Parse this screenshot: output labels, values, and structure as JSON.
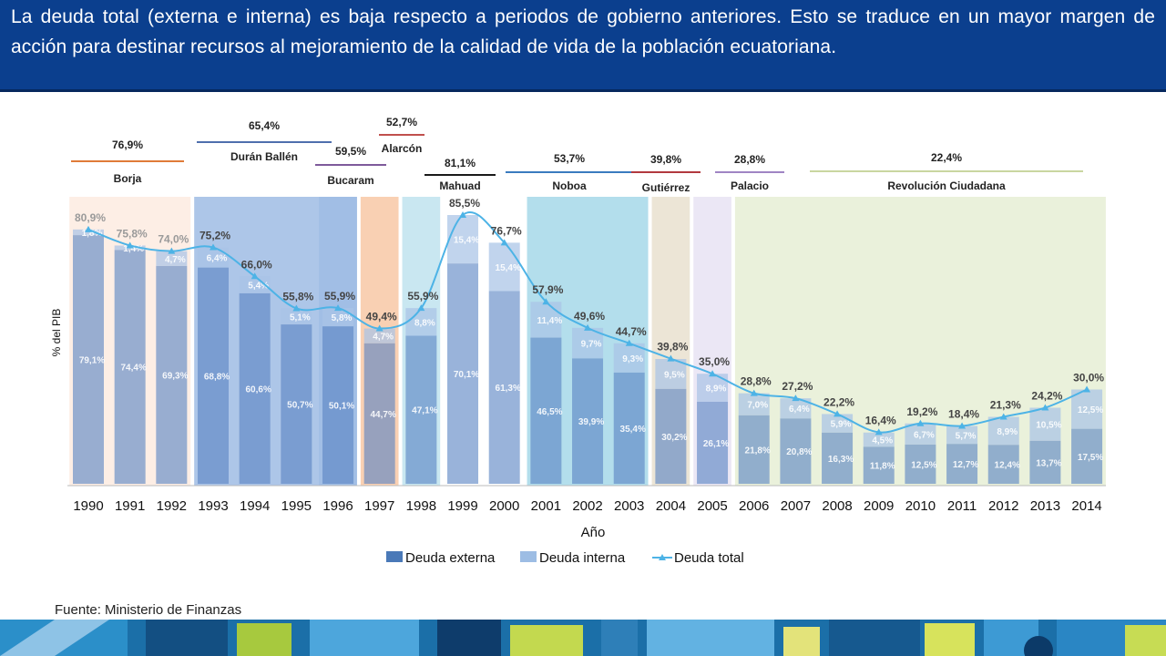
{
  "header": {
    "text": "La deuda total (externa e interna) es baja respecto a periodos de gobierno anteriores.   Esto se traduce en un mayor margen de acción para destinar recursos al mejoramiento de la calidad de vida de la población ecuatoriana."
  },
  "source": "Fuente: Ministerio de Finanzas",
  "footer": {
    "decoration": "money-pattern-band"
  },
  "chart_data": {
    "type": "bar",
    "stacked": true,
    "categories": [
      "1990",
      "1991",
      "1992",
      "1993",
      "1994",
      "1995",
      "1996",
      "1997",
      "1998",
      "1999",
      "2000",
      "2001",
      "2002",
      "2003",
      "2004",
      "2005",
      "2006",
      "2007",
      "2008",
      "2009",
      "2010",
      "2011",
      "2012",
      "2013",
      "2014"
    ],
    "series": [
      {
        "name": "Deuda externa",
        "values": [
          79.1,
          74.4,
          69.3,
          68.8,
          60.6,
          50.7,
          50.1,
          44.7,
          47.1,
          70.1,
          61.3,
          46.5,
          39.9,
          35.4,
          30.2,
          26.1,
          21.8,
          20.8,
          16.3,
          11.8,
          12.5,
          12.7,
          12.4,
          13.7,
          17.5
        ],
        "labels": [
          "79,1%",
          "74,4%",
          "69,3%",
          "68,8%",
          "60,6%",
          "50,7%",
          "50,1%",
          "44,7%",
          "47,1%",
          "70,1%",
          "61,3%",
          "46,5%",
          "39,9%",
          "35,4%",
          "30,2%",
          "26,1%",
          "21,8%",
          "20,8%",
          "16,3%",
          "11,8%",
          "12,5%",
          "12,7%",
          "12,4%",
          "13,7%",
          "17,5%"
        ]
      },
      {
        "name": "Deuda interna",
        "values": [
          1.8,
          1.4,
          4.7,
          6.4,
          5.4,
          5.1,
          5.8,
          4.7,
          8.8,
          15.4,
          15.4,
          11.4,
          9.7,
          9.3,
          9.5,
          8.9,
          7.0,
          6.4,
          5.9,
          4.5,
          6.7,
          5.7,
          8.9,
          10.5,
          12.5
        ],
        "labels": [
          "1,8%",
          "1,4%",
          "4,7%",
          "6,4%",
          "5,4%",
          "5,1%",
          "5,8%",
          "4,7%",
          "8,8%",
          "15,4%",
          "15,4%",
          "11,4%",
          "9,7%",
          "9,3%",
          "9,5%",
          "8,9%",
          "7,0%",
          "6,4%",
          "5,9%",
          "4,5%",
          "6,7%",
          "5,7%",
          "8,9%",
          "10,5%",
          "12,5%"
        ]
      },
      {
        "name": "Deuda total",
        "type": "line",
        "values": [
          80.9,
          75.8,
          74.0,
          75.2,
          66.0,
          55.8,
          55.9,
          49.4,
          55.9,
          85.5,
          76.7,
          57.9,
          49.6,
          44.7,
          39.8,
          35.0,
          28.8,
          27.2,
          22.2,
          16.4,
          19.2,
          18.4,
          21.3,
          24.2,
          30.0
        ],
        "labels": [
          "80,9%",
          "75,8%",
          "74,0%",
          "75,2%",
          "66,0%",
          "55,8%",
          "55,9%",
          "49,4%",
          "55,9%",
          "85,5%",
          "76,7%",
          "57,9%",
          "49,6%",
          "44,7%",
          "39,8%",
          "35,0%",
          "28,8%",
          "27,2%",
          "22,2%",
          "16,4%",
          "19,2%",
          "18,4%",
          "21,3%",
          "24,2%",
          "30,0%"
        ]
      }
    ],
    "xlabel": "Año",
    "ylabel": "% del PIB",
    "ylim": [
      0,
      90
    ],
    "legend": [
      "Deuda externa",
      "Deuda interna",
      "Deuda total"
    ],
    "legend_position": "bottom",
    "governments": [
      {
        "name": "Borja",
        "value": "76,9%",
        "start": 0,
        "end": 2,
        "color": "#e07b39",
        "shade": "#fdebe0"
      },
      {
        "name": "Durán Ballén",
        "value": "65,4%",
        "start": 3,
        "end": 6,
        "color": "#4f6fad",
        "shade": "#9fbce4"
      },
      {
        "name": "Bucaram",
        "value": "59,5%",
        "start": 6,
        "end": 6,
        "color": "#7e5a9b",
        "shade": "#9fbce4"
      },
      {
        "name": "Alarcón",
        "value": "52,7%",
        "start": 7,
        "end": 7,
        "color": "#c0504d",
        "shade": "#f8c8a6"
      },
      {
        "name": "Mahuad",
        "value": "81,1%",
        "start": 8,
        "end": 8,
        "color": "#1a1a1a",
        "shade": "#bfe3ee"
      },
      {
        "name": "Noboa",
        "value": "53,7%",
        "start": 11,
        "end": 13,
        "color": "#3a7bbf",
        "shade": "#a6d8e9"
      },
      {
        "name": "Gutiérrez",
        "value": "39,8%",
        "start": 14,
        "end": 14,
        "color": "#b2393f",
        "shade": "#e9e1cf"
      },
      {
        "name": "Palacio",
        "value": "28,8%",
        "start": 15,
        "end": 15,
        "color": "#a084c4",
        "shade": "#e8e3f3"
      },
      {
        "name": "Revolución Ciudadana",
        "value": "22,4%",
        "start": 16,
        "end": 24,
        "color": "#c9d6a0",
        "shade": "#e6eed5"
      }
    ]
  }
}
